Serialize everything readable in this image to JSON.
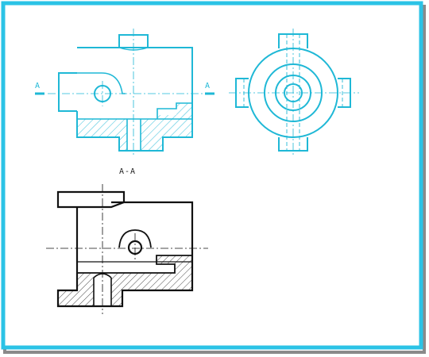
{
  "labels": {
    "section_left": "A",
    "section_right": "A",
    "section_view_title": "A-A"
  },
  "colors": {
    "border_cyan": "#2bc3e6",
    "border_shadow": "#8a8a8a",
    "upper_views": "#1fb8d6",
    "lower_view": "#111111"
  },
  "views": [
    {
      "name": "front-half-section-view",
      "style": "cyan"
    },
    {
      "name": "top-view",
      "style": "cyan"
    },
    {
      "name": "section-view-a-a",
      "style": "black"
    }
  ]
}
